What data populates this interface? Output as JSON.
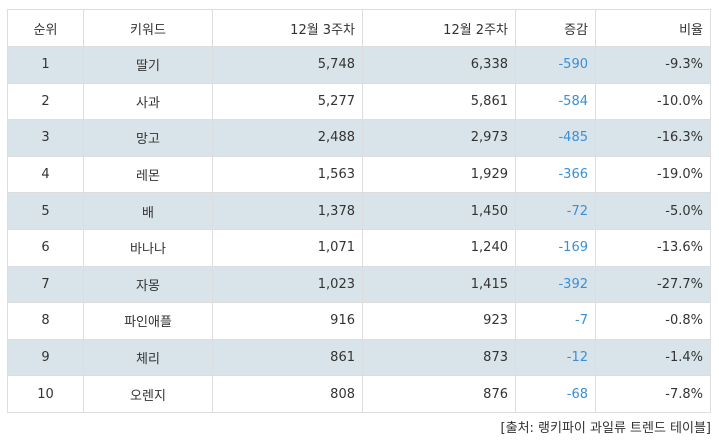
{
  "table": {
    "headers": [
      "순위",
      "키워드",
      "12월 3주차",
      "12월 2주차",
      "증감",
      "비율"
    ],
    "rows": [
      {
        "rank": "1",
        "keyword": "딸기",
        "week3": "5,748",
        "week2": "6,338",
        "change": "-590",
        "ratio": "-9.3%"
      },
      {
        "rank": "2",
        "keyword": "사과",
        "week3": "5,277",
        "week2": "5,861",
        "change": "-584",
        "ratio": "-10.0%"
      },
      {
        "rank": "3",
        "keyword": "망고",
        "week3": "2,488",
        "week2": "2,973",
        "change": "-485",
        "ratio": "-16.3%"
      },
      {
        "rank": "4",
        "keyword": "레몬",
        "week3": "1,563",
        "week2": "1,929",
        "change": "-366",
        "ratio": "-19.0%"
      },
      {
        "rank": "5",
        "keyword": "배",
        "week3": "1,378",
        "week2": "1,450",
        "change": "-72",
        "ratio": "-5.0%"
      },
      {
        "rank": "6",
        "keyword": "바나나",
        "week3": "1,071",
        "week2": "1,240",
        "change": "-169",
        "ratio": "-13.6%"
      },
      {
        "rank": "7",
        "keyword": "자몽",
        "week3": "1,023",
        "week2": "1,415",
        "change": "-392",
        "ratio": "-27.7%"
      },
      {
        "rank": "8",
        "keyword": "파인애플",
        "week3": "916",
        "week2": "923",
        "change": "-7",
        "ratio": "-0.8%"
      },
      {
        "rank": "9",
        "keyword": "체리",
        "week3": "861",
        "week2": "873",
        "change": "-12",
        "ratio": "-1.4%"
      },
      {
        "rank": "10",
        "keyword": "오렌지",
        "week3": "808",
        "week2": "876",
        "change": "-68",
        "ratio": "-7.8%"
      }
    ]
  },
  "source": "[출처: 랭키파이 과일류 트렌드 테이블]",
  "colors": {
    "stripe": "#d9e4ea",
    "negative": "#3a8fd6",
    "border": "#dddddd"
  }
}
